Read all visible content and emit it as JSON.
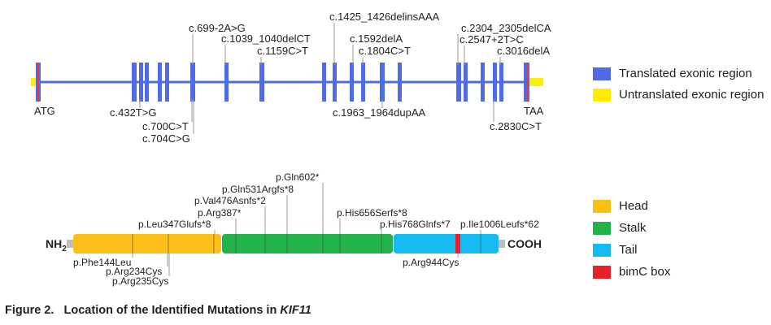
{
  "gene_panel": {
    "start_codon": "ATG",
    "stop_codon": "TAA",
    "mutations_above": [
      {
        "text": "c.699-2A>G"
      },
      {
        "text": "c.1039_1040delCT"
      },
      {
        "text": "c.1159C>T"
      },
      {
        "text": "c.1425_1426delinsAAA"
      },
      {
        "text": "c.1592delA"
      },
      {
        "text": "c.1804C>T"
      },
      {
        "text": "c.2304_2305delCA"
      },
      {
        "text": "c.2547+2T>C"
      },
      {
        "text": "c.3016delA"
      }
    ],
    "mutations_below": [
      {
        "text": "c.432T>G"
      },
      {
        "text": "c.700C>T"
      },
      {
        "text": "c.704C>G"
      },
      {
        "text": "c.1963_1964dupAA"
      },
      {
        "text": "c.2830C>T"
      }
    ],
    "colors": {
      "translated": "#4f6ce6",
      "untranslated": "#ffee00",
      "codon_marker": "#e23a3a"
    }
  },
  "protein_panel": {
    "n_terminus": "NH",
    "n_terminus_sub": "2",
    "c_terminus": "COOH",
    "mutations_above": [
      {
        "text": "p.Leu347Glufs*8"
      },
      {
        "text": "p.Arg387*"
      },
      {
        "text": "p.Val476Asnfs*2"
      },
      {
        "text": "p.Gln531Argfs*8"
      },
      {
        "text": "p.Gln602*"
      },
      {
        "text": "p.His656Serfs*8"
      },
      {
        "text": "p.His768Glnfs*7"
      },
      {
        "text": "p.Ile1006Leufs*62"
      }
    ],
    "mutations_below": [
      {
        "text": "p.Phe144Leu"
      },
      {
        "text": "p.Arg234Cys"
      },
      {
        "text": "p.Arg235Cys"
      },
      {
        "text": "p.Arg944Cys"
      }
    ],
    "colors": {
      "head": "#fbbf18",
      "stalk": "#24b24b",
      "tail": "#14baf0",
      "bimc": "#e8202a"
    }
  },
  "legend_gene": {
    "items": [
      {
        "label": "Translated exonic region",
        "color": "#4f6ce6"
      },
      {
        "label": "Untranslated exonic region",
        "color": "#ffee00"
      }
    ]
  },
  "legend_protein": {
    "items": [
      {
        "label": "Head",
        "color": "#fbbf18"
      },
      {
        "label": "Stalk",
        "color": "#24b24b"
      },
      {
        "label": "Tail",
        "color": "#14baf0"
      },
      {
        "label": "bimC box",
        "color": "#e8202a"
      }
    ]
  },
  "caption": {
    "prefix": "Figure 2.",
    "text": "Location of the Identified Mutations in ",
    "gene": "KIF11"
  }
}
